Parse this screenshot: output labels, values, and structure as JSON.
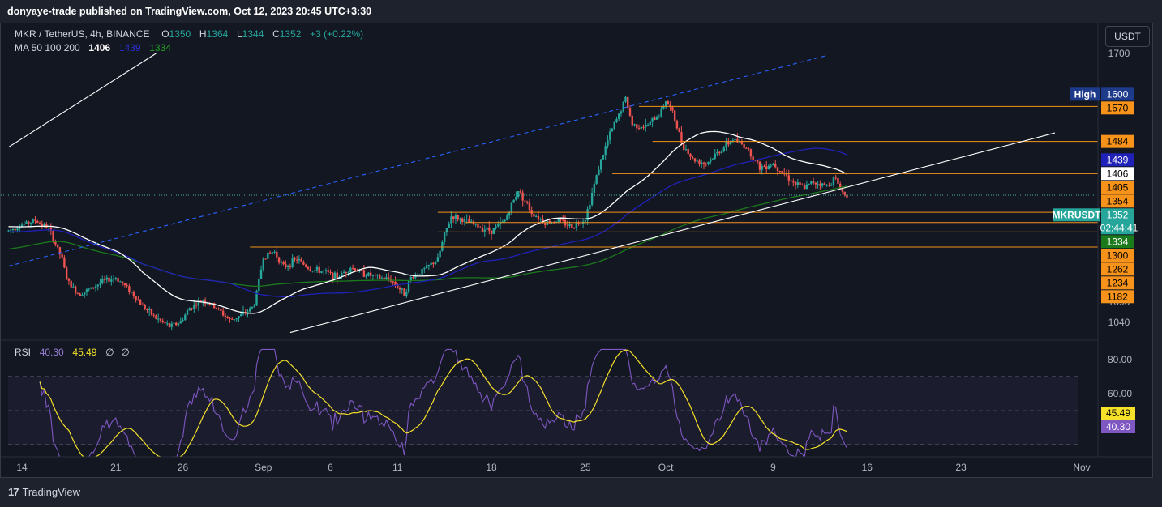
{
  "header": {
    "text": "donyaye-trade published on TradingView.com, Oct 12, 2023 20:45 UTC+3:30"
  },
  "legend": {
    "symbol": "MKR / TetherUS, 4h, BINANCE",
    "o_label": "O",
    "o": "1350",
    "h_label": "H",
    "h": "1364",
    "l_label": "L",
    "l": "1344",
    "c_label": "C",
    "c": "1352",
    "change": "+3 (+0.22%)",
    "ma_label": "MA 50 100 200",
    "ma50": "1406",
    "ma100": "1439",
    "ma200": "1334"
  },
  "rsi_legend": {
    "label": "RSI",
    "rsi": "40.30",
    "ma": "45.49",
    "extra1": "∅",
    "extra2": "∅"
  },
  "currency_button": "USDT",
  "footer": {
    "logo_mark": "17",
    "logo_text": "TradingView"
  },
  "colors": {
    "background": "#131722",
    "up": "#26a69a",
    "down": "#ef5350",
    "ma50": "#ffffff",
    "ma100": "#2021b8",
    "ma200": "#1b7a1b",
    "level": "#f7931a",
    "rsi": "#7e57c2",
    "rsi_ma": "#f5e02a"
  },
  "chart_data": [
    {
      "type": "candlestick",
      "title": "MKR / TetherUS, 4h, BINANCE",
      "y_ticks": [
        "1700",
        "1140",
        "1090",
        "1040"
      ],
      "ylim": [
        1010,
        1740
      ],
      "x_ticks": [
        "14",
        "21",
        "26",
        "Sep",
        "6",
        "11",
        "18",
        "25",
        "Oct",
        "9",
        "16",
        "23",
        "Nov"
      ],
      "price_labels": [
        {
          "text": "1600",
          "value": 1600,
          "tag": "High",
          "bg": "#1e3a8a",
          "fg": "#ffffff"
        },
        {
          "text": "1570",
          "value": 1570,
          "bg": "#f7931a",
          "fg": "#000000"
        },
        {
          "text": "1484",
          "value": 1484,
          "bg": "#f7931a",
          "fg": "#000000"
        },
        {
          "text": "1439",
          "value": 1439,
          "bg": "#2021b8",
          "fg": "#ffffff"
        },
        {
          "text": "1406",
          "value": 1406,
          "bg": "#ffffff",
          "fg": "#000000"
        },
        {
          "text": "1405",
          "value": 1405,
          "bg": "#f7931a",
          "fg": "#000000"
        },
        {
          "text": "1354",
          "value": 1354,
          "bg": "#f7931a",
          "fg": "#000000"
        },
        {
          "text": "1352",
          "value": 1352,
          "tag": "MKRUSDT",
          "sub": "02:44:41",
          "bg": "#26a69a",
          "fg": "#ffffff"
        },
        {
          "text": "1334",
          "value": 1334,
          "bg": "#1b7a1b",
          "fg": "#ffffff"
        },
        {
          "text": "1300",
          "value": 1300,
          "bg": "#f7931a",
          "fg": "#000000"
        },
        {
          "text": "1262",
          "value": 1262,
          "bg": "#f7931a",
          "fg": "#000000"
        },
        {
          "text": "1234",
          "value": 1234,
          "bg": "#f7931a",
          "fg": "#000000"
        },
        {
          "text": "1182",
          "value": 1182,
          "bg": "#f7931a",
          "fg": "#000000"
        }
      ],
      "horizontal_levels": [
        {
          "value": 1570,
          "x_from": "Sep 29"
        },
        {
          "value": 1484,
          "x_from": "Sep 30"
        },
        {
          "value": 1405,
          "x_from": "Sep 27"
        },
        {
          "value": 1352,
          "x_from": "Sep 19",
          "style": "dotted"
        },
        {
          "value": 1310,
          "x_from": "Sep 14"
        },
        {
          "value": 1285,
          "x_from": "Sep 16"
        },
        {
          "value": 1262,
          "x_from": "Sep 14"
        },
        {
          "value": 1225,
          "x_from": "Aug 31"
        }
      ],
      "trendlines": [
        {
          "from": [
            "Aug 13",
            1470
          ],
          "to": [
            "Aug 24",
            1700
          ],
          "color": "#ffffff",
          "style": "solid"
        },
        {
          "from": [
            "Aug 13",
            1178
          ],
          "to": [
            "Oct 13",
            1695
          ],
          "color": "#2962ff",
          "style": "dashed"
        },
        {
          "from": [
            "Sep 3",
            1015
          ],
          "to": [
            "Oct 30",
            1505
          ],
          "color": "#ffffff",
          "style": "solid"
        }
      ],
      "last_close": 1352,
      "series": [
        {
          "name": "MA 50",
          "color": "#ffffff"
        },
        {
          "name": "MA 100",
          "color": "#2021b8"
        },
        {
          "name": "MA 200",
          "color": "#1b7a1b"
        }
      ]
    },
    {
      "type": "line",
      "title": "RSI",
      "y_ticks": [
        "80.00",
        "60.00"
      ],
      "ylim": [
        20,
        90
      ],
      "bands": [
        70,
        50,
        30
      ],
      "value_labels": [
        {
          "text": "45.49",
          "bg": "#f5e02a",
          "fg": "#000000"
        },
        {
          "text": "40.30",
          "bg": "#7e57c2",
          "fg": "#ffffff"
        }
      ]
    }
  ]
}
